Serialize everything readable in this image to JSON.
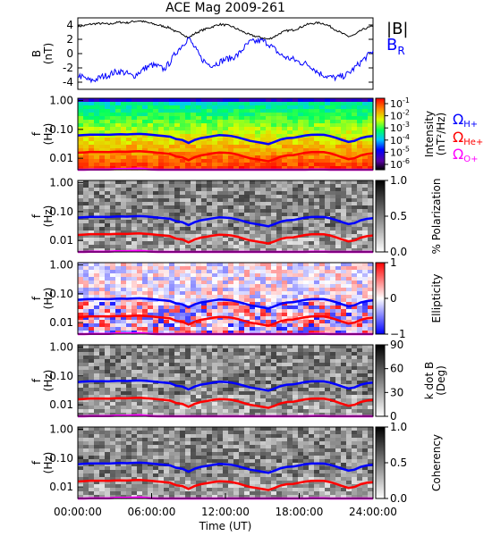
{
  "title": "ACE Mag 2009-261",
  "x_axis": {
    "label": "Time (UT)",
    "ticks": [
      "00:00:00",
      "06:00:00",
      "12:00:00",
      "18:00:00",
      "24:00:00"
    ],
    "tick_hours": [
      0,
      6,
      12,
      18,
      24
    ],
    "range_hours": [
      0,
      24
    ]
  },
  "colors": {
    "B_total": "#000000",
    "B_R": "#0000ff",
    "H_plus": "#0000ff",
    "He_plus": "#ff0000",
    "O_plus": "#ff00ff"
  },
  "panel1": {
    "ylabel": "B",
    "yunit": "(nT)",
    "ticks": [
      "4",
      "2",
      "0",
      "-2",
      "-4"
    ],
    "tick_values": [
      4,
      2,
      0,
      -2,
      -4
    ],
    "ylim": [
      -5,
      5
    ],
    "legend": {
      "total": "|B|",
      "radial": "B",
      "radial_sub": "R"
    }
  },
  "freq_axis": {
    "ylabel": "f",
    "yunit": "(Hz)",
    "ticks": [
      "1.00",
      "0.10",
      "0.01"
    ],
    "tick_values": [
      1,
      0.1,
      0.01
    ],
    "ylim": [
      0.004,
      1.2
    ],
    "scale": "log"
  },
  "ion_legend": {
    "symbol": "Ω",
    "items": [
      {
        "sub": "H+",
        "color": "#0000ff"
      },
      {
        "sub": "He+",
        "color": "#ff0000"
      },
      {
        "sub": "O+",
        "color": "#ff00ff"
      }
    ]
  },
  "colorbars": [
    {
      "label": "Intensity",
      "unit": "(nT²/Hz)",
      "tick_base": "10",
      "tick_exps": [
        "-1",
        "-2",
        "-3",
        "-4",
        "-5",
        "-6"
      ],
      "colormap": "rainbow"
    },
    {
      "label": "% Polarization",
      "ticks": [
        "1.0",
        "0.5",
        "0.0"
      ],
      "tick_values": [
        1,
        0.5,
        0
      ],
      "range": [
        0,
        1
      ],
      "colormap": "gray"
    },
    {
      "label": "Ellipticity",
      "ticks": [
        "1",
        "0",
        "−1"
      ],
      "tick_values": [
        1,
        0,
        -1
      ],
      "range": [
        -1,
        1
      ],
      "colormap": "bwr"
    },
    {
      "label": "k dot B",
      "unit": "(Deg)",
      "ticks": [
        "90",
        "60",
        "30",
        "0"
      ],
      "tick_values": [
        90,
        60,
        30,
        0
      ],
      "range": [
        0,
        90
      ],
      "colormap": "gray"
    },
    {
      "label": "Coherency",
      "ticks": [
        "1.0",
        "0.5",
        "0.0"
      ],
      "tick_values": [
        1,
        0.5,
        0
      ],
      "range": [
        0,
        1
      ],
      "colormap": "gray"
    }
  ],
  "chart_data": {
    "type": "line",
    "title": "ACE Mag 2009-261",
    "xlabel": "Time (UT)",
    "x_unit": "hours",
    "x": [
      0,
      0.5,
      1,
      1.5,
      2,
      2.5,
      3,
      3.5,
      4,
      4.5,
      5,
      5.5,
      6,
      6.5,
      7,
      7.5,
      8,
      8.5,
      9,
      9.5,
      10,
      10.5,
      11,
      11.5,
      12,
      12.5,
      13,
      13.5,
      14,
      14.5,
      15,
      15.5,
      16,
      16.5,
      17,
      17.5,
      18,
      18.5,
      19,
      19.5,
      20,
      20.5,
      21,
      21.5,
      22,
      22.5,
      23,
      23.5,
      24
    ],
    "series": [
      {
        "name": "|B|",
        "values": [
          3.8,
          3.9,
          4.1,
          4.2,
          4.2,
          4.1,
          4.3,
          4.4,
          4.3,
          4.5,
          4.6,
          4.4,
          4.2,
          4.0,
          3.8,
          3.6,
          3.0,
          2.8,
          2.2,
          2.8,
          3.2,
          3.5,
          3.8,
          4.1,
          4.0,
          3.8,
          3.4,
          3.0,
          2.6,
          2.4,
          2.2,
          2.0,
          2.4,
          2.9,
          3.2,
          3.3,
          3.6,
          4.0,
          4.2,
          4.3,
          4.2,
          3.8,
          3.3,
          2.8,
          2.4,
          2.6,
          3.2,
          3.6,
          3.8
        ]
      },
      {
        "name": "B_R",
        "values": [
          -3.0,
          -3.4,
          -3.8,
          -3.6,
          -3.2,
          -3.0,
          -2.6,
          -2.5,
          -2.8,
          -3.2,
          -2.6,
          -2.0,
          -1.6,
          -1.8,
          -2.2,
          -1.2,
          0.2,
          1.2,
          2.2,
          0.8,
          -0.6,
          -1.4,
          -1.6,
          -1.2,
          -0.8,
          -0.6,
          -0.2,
          0.8,
          1.6,
          1.7,
          1.8,
          1.4,
          0.6,
          -0.2,
          -0.6,
          -0.8,
          -1.2,
          -1.4,
          -1.8,
          -2.6,
          -3.0,
          -3.3,
          -3.4,
          -3.2,
          -2.8,
          -2.0,
          -1.2,
          -0.4,
          0.4
        ]
      },
      {
        "name": "Ω_H+",
        "unit": "Hz",
        "values": [
          0.062,
          0.064,
          0.066,
          0.066,
          0.066,
          0.065,
          0.067,
          0.068,
          0.067,
          0.069,
          0.07,
          0.068,
          0.065,
          0.062,
          0.059,
          0.056,
          0.046,
          0.043,
          0.034,
          0.043,
          0.05,
          0.054,
          0.059,
          0.063,
          0.062,
          0.059,
          0.053,
          0.046,
          0.04,
          0.037,
          0.034,
          0.031,
          0.037,
          0.045,
          0.05,
          0.051,
          0.056,
          0.062,
          0.065,
          0.066,
          0.065,
          0.059,
          0.051,
          0.043,
          0.037,
          0.04,
          0.05,
          0.056,
          0.059
        ]
      },
      {
        "name": "Ω_He+",
        "unit": "Hz",
        "values": [
          0.0155,
          0.016,
          0.0165,
          0.0165,
          0.0165,
          0.0163,
          0.0168,
          0.017,
          0.0168,
          0.0173,
          0.0175,
          0.017,
          0.0163,
          0.0155,
          0.0148,
          0.014,
          0.0115,
          0.0108,
          0.0085,
          0.0108,
          0.0125,
          0.0135,
          0.0148,
          0.0158,
          0.0155,
          0.0148,
          0.0133,
          0.0115,
          0.01,
          0.0093,
          0.0085,
          0.0078,
          0.0093,
          0.0113,
          0.0125,
          0.0128,
          0.014,
          0.0155,
          0.0163,
          0.0165,
          0.0163,
          0.0148,
          0.0128,
          0.0108,
          0.0093,
          0.01,
          0.0125,
          0.014,
          0.0148
        ]
      },
      {
        "name": "Ω_O+",
        "unit": "Hz",
        "values": [
          0.0039,
          0.004,
          0.0041,
          0.0041,
          0.0041,
          0.0041,
          0.0042,
          0.0042,
          0.0042,
          0.0043,
          0.0044,
          0.0042,
          0.0041,
          0.0039,
          0.0037,
          0.0035,
          0.0029,
          0.0027,
          0.0021,
          0.0027,
          0.0031,
          0.0034,
          0.0037,
          0.0039,
          0.0039,
          0.0037,
          0.0033,
          0.0029,
          0.0025,
          0.0023,
          0.0021,
          0.0019,
          0.0023,
          0.0028,
          0.0031,
          0.0032,
          0.0035,
          0.0039,
          0.0041,
          0.0041,
          0.0041,
          0.0037,
          0.0032,
          0.0027,
          0.0023,
          0.0025,
          0.0031,
          0.0035,
          0.0037
        ]
      }
    ]
  }
}
